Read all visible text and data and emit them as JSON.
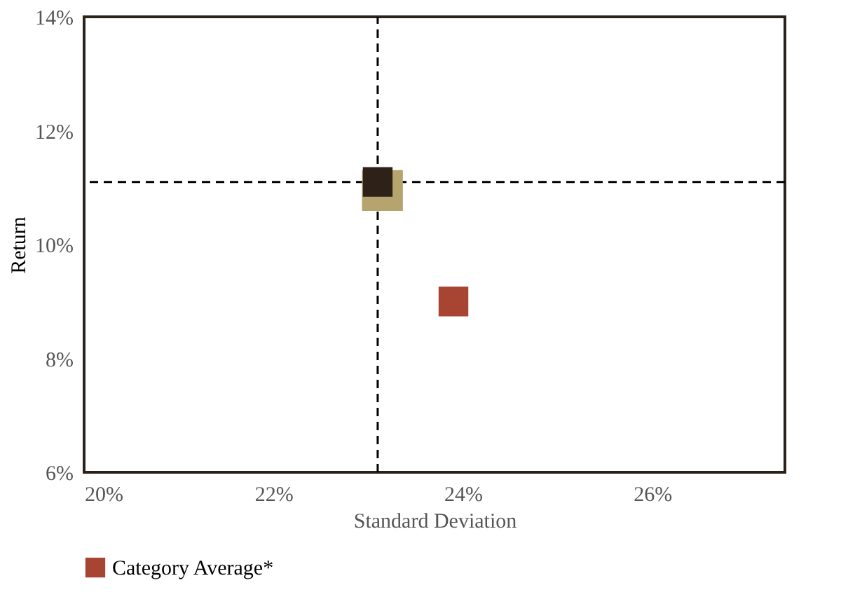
{
  "chart_data": {
    "type": "scatter",
    "xlabel": "Standard Deviation",
    "ylabel": "Return",
    "xlim": [
      20,
      27.4
    ],
    "ylim": [
      6,
      14
    ],
    "xticks": [
      {
        "value": 20,
        "label": "20%"
      },
      {
        "value": 22,
        "label": "22%"
      },
      {
        "value": 24,
        "label": "24%"
      },
      {
        "value": 26,
        "label": "26%"
      }
    ],
    "yticks": [
      {
        "value": 6,
        "label": "6%"
      },
      {
        "value": 8,
        "label": "8%"
      },
      {
        "value": 10,
        "label": "10%"
      },
      {
        "value": 12,
        "label": "12%"
      },
      {
        "value": 14,
        "label": "14%"
      }
    ],
    "marker": "square",
    "grid": false,
    "legend": "bottom",
    "series": [
      {
        "color": "#b5a46e",
        "x": [
          23.15
        ],
        "values": [
          10.95
        ]
      },
      {
        "color": "#2e2118",
        "x": [
          23.1
        ],
        "values": [
          11.1
        ]
      },
      {
        "name": "Category Average*",
        "color": "#a84432",
        "x": [
          23.9
        ],
        "values": [
          9.0
        ]
      }
    ],
    "ref_lines": [
      {
        "axis": "x",
        "value": 23.1,
        "line_style": "dashed",
        "color": "#000000"
      },
      {
        "axis": "y",
        "value": 11.1,
        "line_style": "dashed",
        "color": "#000000"
      }
    ]
  }
}
